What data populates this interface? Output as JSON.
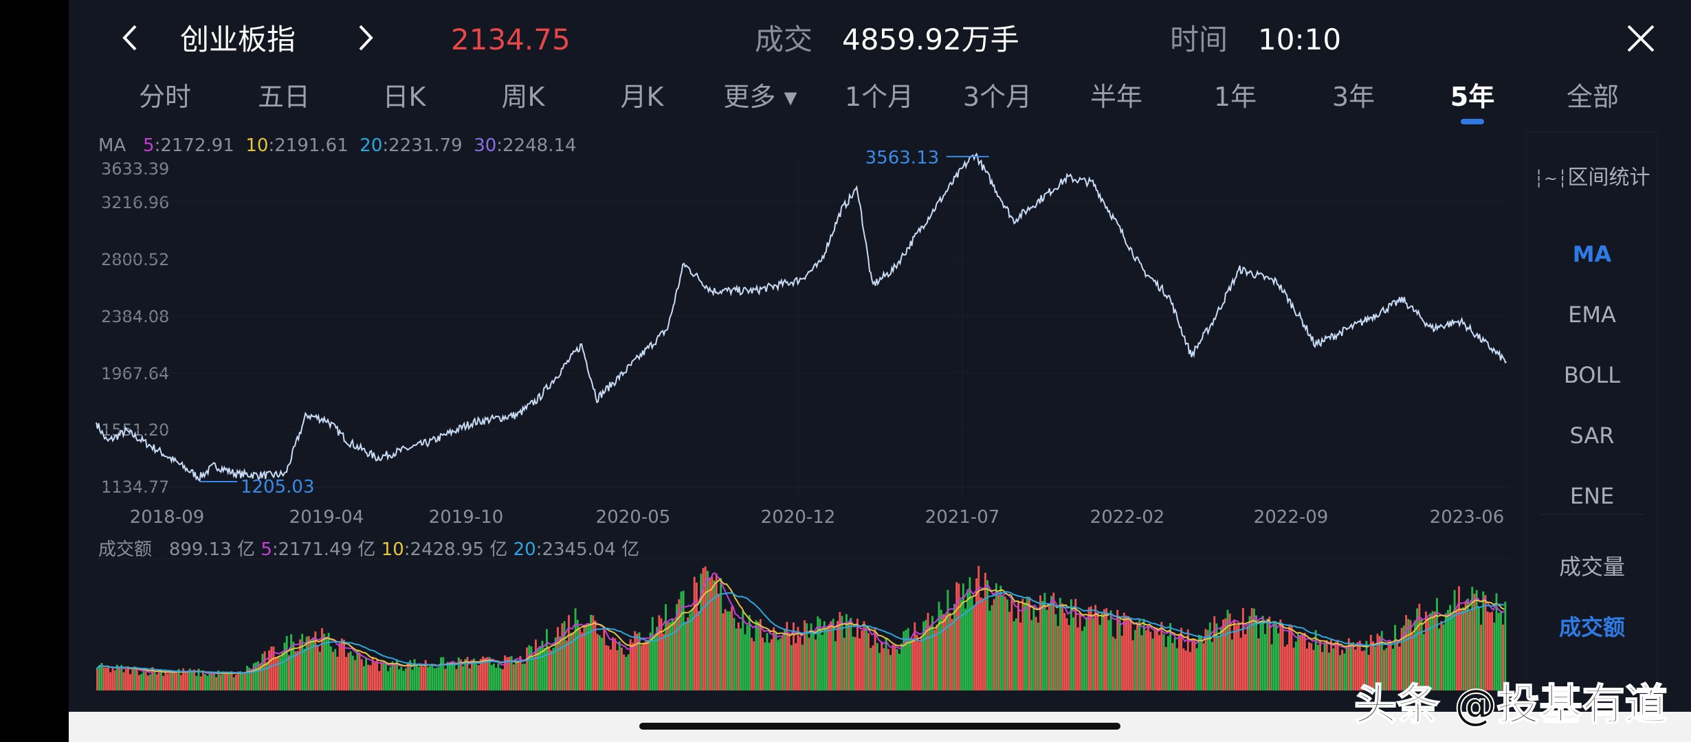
{
  "header": {
    "back_icon": "chevron-left",
    "title": "创业板指",
    "next_icon": "chevron-right",
    "price": "2134.75",
    "price_color": "#e8474a",
    "volume_label": "成交",
    "volume_value": "4859.92万手",
    "time_label": "时间",
    "time_value": "10:10",
    "close_icon": "close-x"
  },
  "tabs": [
    {
      "label": "分时"
    },
    {
      "label": "五日"
    },
    {
      "label": "日K"
    },
    {
      "label": "周K"
    },
    {
      "label": "月K"
    },
    {
      "label": "更多 ▾"
    },
    {
      "label": "1个月"
    },
    {
      "label": "3个月"
    },
    {
      "label": "半年"
    },
    {
      "label": "1年"
    },
    {
      "label": "3年"
    },
    {
      "label": "5年",
      "active": true
    },
    {
      "label": "全部"
    }
  ],
  "ma_legend": {
    "label": "MA",
    "items": [
      {
        "k": "5",
        "v": ":2172.91",
        "color": "#c43fd6"
      },
      {
        "k": "10",
        "v": ":2191.61",
        "color": "#e6c63a"
      },
      {
        "k": "20",
        "v": ":2231.79",
        "color": "#2ea6e0"
      },
      {
        "k": "30",
        "v": ":2248.14",
        "color": "#8a6ee8"
      }
    ]
  },
  "vol_legend": {
    "label": "成交额",
    "value": "899.13 亿",
    "items": [
      {
        "k": "5",
        "v": ":2171.49 亿",
        "color": "#c43fd6"
      },
      {
        "k": "10",
        "v": ":2428.95 亿",
        "color": "#e6c63a"
      },
      {
        "k": "20",
        "v": ":2345.04 亿",
        "color": "#2ea6e0"
      }
    ]
  },
  "side_panel": {
    "range_stats": "区间统计",
    "range_icon": "range-wave",
    "indicators": [
      {
        "label": "MA",
        "active": true
      },
      {
        "label": "EMA"
      },
      {
        "label": "BOLL"
      },
      {
        "label": "SAR"
      },
      {
        "label": "ENE"
      }
    ],
    "sub": [
      {
        "label": "成交量"
      },
      {
        "label": "成交额",
        "active": true
      }
    ]
  },
  "watermark": "头条 @投基有道",
  "chart_data": {
    "type": "line",
    "y_ticks": [
      "3633.39",
      "3216.96",
      "2800.52",
      "2384.08",
      "1967.64",
      "1551.20",
      "1134.77"
    ],
    "x_ticks": [
      "2018-09",
      "2019-04",
      "2019-10",
      "2020-05",
      "2020-12",
      "2021-07",
      "2022-02",
      "2022-09",
      "2023-06"
    ],
    "max_label": "3563.13",
    "min_label": "1205.03",
    "line_color": "#c9dcf5",
    "price": [
      [
        "2018-06-01",
        1606
      ],
      [
        "2018-06-15",
        1465
      ],
      [
        "2018-07-10",
        1543
      ],
      [
        "2018-08-25",
        1386
      ],
      [
        "2018-10-13",
        1205
      ],
      [
        "2018-11-02",
        1292
      ],
      [
        "2018-12-01",
        1229
      ],
      [
        "2019-01-12",
        1220
      ],
      [
        "2019-02-02",
        1229
      ],
      [
        "2019-03-01",
        1661
      ],
      [
        "2019-03-28",
        1622
      ],
      [
        "2019-04-25",
        1465
      ],
      [
        "2019-06-01",
        1347
      ],
      [
        "2019-08-10",
        1465
      ],
      [
        "2019-10-04",
        1606
      ],
      [
        "2019-12-01",
        1661
      ],
      [
        "2019-12-28",
        1779
      ],
      [
        "2020-01-25",
        1975
      ],
      [
        "2020-02-22",
        2172
      ],
      [
        "2020-03-13",
        1779
      ],
      [
        "2020-04-18",
        1975
      ],
      [
        "2020-06-13",
        2290
      ],
      [
        "2020-07-04",
        2761
      ],
      [
        "2020-08-09",
        2565
      ],
      [
        "2020-10-04",
        2565
      ],
      [
        "2020-12-01",
        2643
      ],
      [
        "2020-12-28",
        2761
      ],
      [
        "2021-01-25",
        3154
      ],
      [
        "2021-02-15",
        3311
      ],
      [
        "2021-03-06",
        2604
      ],
      [
        "2021-04-03",
        2722
      ],
      [
        "2021-05-15",
        3075
      ],
      [
        "2021-07-03",
        3468
      ],
      [
        "2021-07-18",
        3563.13
      ],
      [
        "2021-09-06",
        3075
      ],
      [
        "2021-11-15",
        3390
      ],
      [
        "2021-12-18",
        3350
      ],
      [
        "2022-01-24",
        2997
      ],
      [
        "2022-02-20",
        2722
      ],
      [
        "2022-03-27",
        2525
      ],
      [
        "2022-04-25",
        2093
      ],
      [
        "2022-05-22",
        2330
      ],
      [
        "2022-06-27",
        2722
      ],
      [
        "2022-08-15",
        2628
      ],
      [
        "2022-09-18",
        2330
      ],
      [
        "2022-10-03",
        2172
      ],
      [
        "2022-12-01",
        2330
      ],
      [
        "2023-01-25",
        2502
      ],
      [
        "2023-03-04",
        2290
      ],
      [
        "2023-04-10",
        2345
      ],
      [
        "2023-06-09",
        2046
      ]
    ],
    "turnover_unit": "亿",
    "turnover": [
      [
        "2018-06-01",
        700
      ],
      [
        "2018-12-01",
        500
      ],
      [
        "2019-03-01",
        1800
      ],
      [
        "2019-06-01",
        800
      ],
      [
        "2019-12-01",
        900
      ],
      [
        "2020-02-22",
        2400
      ],
      [
        "2020-04-18",
        1300
      ],
      [
        "2020-07-04",
        2800
      ],
      [
        "2020-08-09",
        3300
      ],
      [
        "2020-10-04",
        1800
      ],
      [
        "2021-01-25",
        2000
      ],
      [
        "2021-04-03",
        1400
      ],
      [
        "2021-07-18",
        3200
      ],
      [
        "2021-09-06",
        2600
      ],
      [
        "2021-11-15",
        2500
      ],
      [
        "2022-01-24",
        2000
      ],
      [
        "2022-04-25",
        1600
      ],
      [
        "2022-06-27",
        2200
      ],
      [
        "2022-09-18",
        1600
      ],
      [
        "2022-12-01",
        1300
      ],
      [
        "2023-01-25",
        1900
      ],
      [
        "2023-03-04",
        2500
      ],
      [
        "2023-04-10",
        2900
      ],
      [
        "2023-06-09",
        2400
      ]
    ],
    "up_color": "#f0524f",
    "down_color": "#27b648"
  }
}
